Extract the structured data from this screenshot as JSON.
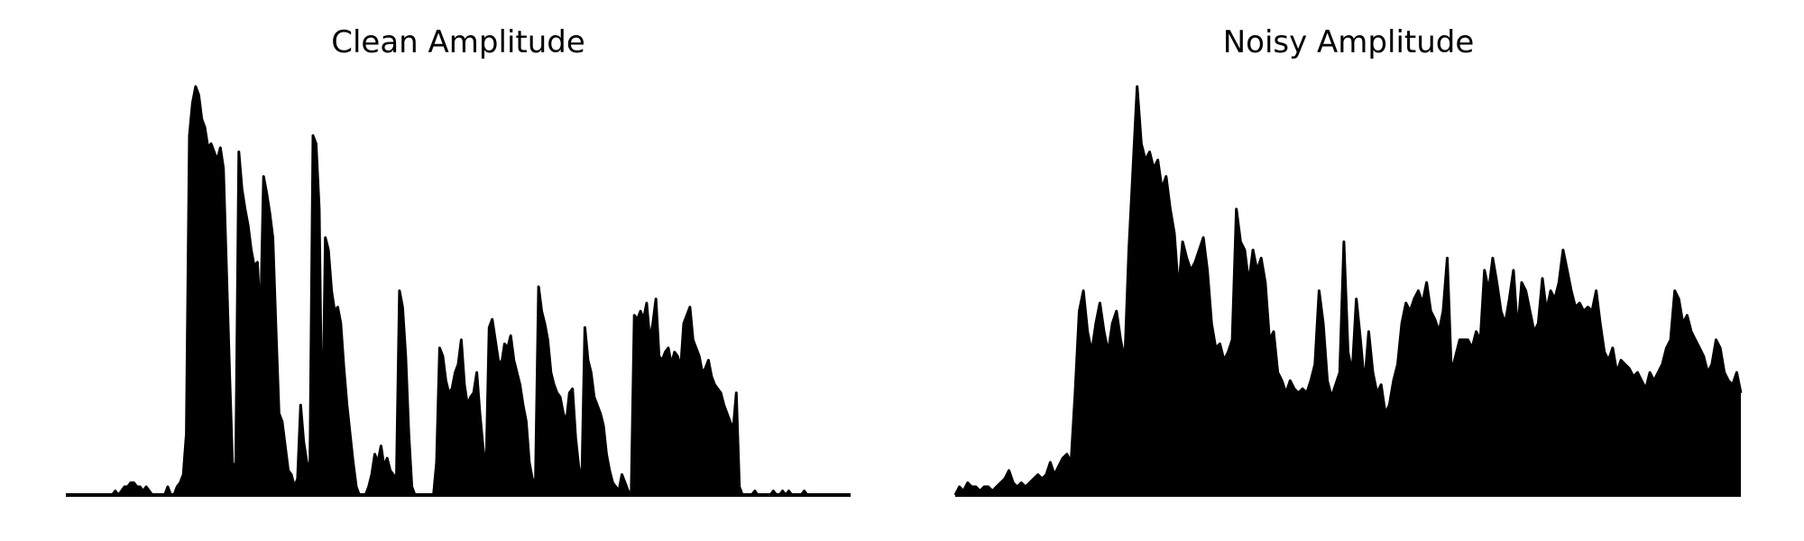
{
  "chart_data": [
    {
      "type": "area",
      "title": "Clean Amplitude",
      "xlabel": "",
      "ylabel": "",
      "grid": false,
      "axes_visible": false,
      "color": "#000000",
      "x_range": [
        0,
        1
      ],
      "ylim": [
        0,
        1
      ],
      "series": [
        {
          "values": [
            0.0,
            0.0,
            0.0,
            0.0,
            0.0,
            0.0,
            0.0,
            0.0,
            0.0,
            0.0,
            0.0,
            0.0,
            0.0,
            0.0,
            0.0,
            0.0,
            0.01,
            0.0,
            0.01,
            0.02,
            0.02,
            0.03,
            0.03,
            0.02,
            0.02,
            0.01,
            0.02,
            0.01,
            0.0,
            0.0,
            0.0,
            0.0,
            0.0,
            0.02,
            0.0,
            0.0,
            0.02,
            0.03,
            0.05,
            0.15,
            0.88,
            0.96,
            1.0,
            0.98,
            0.92,
            0.9,
            0.85,
            0.86,
            0.84,
            0.82,
            0.85,
            0.8,
            0.55,
            0.3,
            0.06,
            0.08,
            0.84,
            0.75,
            0.7,
            0.66,
            0.6,
            0.56,
            0.57,
            0.42,
            0.78,
            0.74,
            0.69,
            0.63,
            0.41,
            0.2,
            0.18,
            0.12,
            0.06,
            0.05,
            0.02,
            0.04,
            0.22,
            0.13,
            0.08,
            0.07,
            0.88,
            0.86,
            0.7,
            0.1,
            0.63,
            0.6,
            0.5,
            0.45,
            0.46,
            0.42,
            0.31,
            0.22,
            0.15,
            0.08,
            0.02,
            0.0,
            0.0,
            0.0,
            0.02,
            0.05,
            0.1,
            0.08,
            0.12,
            0.07,
            0.09,
            0.06,
            0.05,
            0.04,
            0.5,
            0.46,
            0.34,
            0.15,
            0.02,
            0.0,
            0.0,
            0.0,
            0.0,
            0.0,
            0.0,
            0.0,
            0.08,
            0.36,
            0.34,
            0.28,
            0.25,
            0.26,
            0.3,
            0.32,
            0.38,
            0.27,
            0.22,
            0.24,
            0.25,
            0.3,
            0.2,
            0.12,
            0.05,
            0.41,
            0.43,
            0.38,
            0.33,
            0.32,
            0.37,
            0.36,
            0.39,
            0.33,
            0.3,
            0.27,
            0.22,
            0.18,
            0.08,
            0.04,
            0.03,
            0.51,
            0.45,
            0.42,
            0.38,
            0.3,
            0.27,
            0.25,
            0.24,
            0.2,
            0.18,
            0.25,
            0.26,
            0.14,
            0.07,
            0.03,
            0.41,
            0.33,
            0.3,
            0.24,
            0.22,
            0.2,
            0.17,
            0.1,
            0.06,
            0.03,
            0.02,
            0.01,
            0.05,
            0.03,
            0.01,
            0.0,
            0.44,
            0.43,
            0.45,
            0.43,
            0.47,
            0.38,
            0.42,
            0.48,
            0.34,
            0.33,
            0.35,
            0.36,
            0.32,
            0.35,
            0.34,
            0.31,
            0.42,
            0.44,
            0.46,
            0.38,
            0.36,
            0.34,
            0.3,
            0.31,
            0.33,
            0.29,
            0.27,
            0.26,
            0.25,
            0.22,
            0.2,
            0.18,
            0.16,
            0.25,
            0.02,
            0.0,
            0.0,
            0.0,
            0.0,
            0.01,
            0.0,
            0.0,
            0.0,
            0.0,
            0.0,
            0.01,
            0.0,
            0.0,
            0.01,
            0.0,
            0.01,
            0.0,
            0.0,
            0.0,
            0.0,
            0.01,
            0.0,
            0.0,
            0.0,
            0.0,
            0.0,
            0.0,
            0.0,
            0.0,
            0.0,
            0.0,
            0.0,
            0.0,
            0.0,
            0.0,
            0.0
          ]
        }
      ]
    },
    {
      "type": "area",
      "title": "Noisy Amplitude",
      "xlabel": "",
      "ylabel": "",
      "grid": false,
      "axes_visible": false,
      "color": "#000000",
      "x_range": [
        0,
        1
      ],
      "ylim": [
        0,
        1
      ],
      "series": [
        {
          "values": [
            0.0,
            0.02,
            0.01,
            0.03,
            0.02,
            0.02,
            0.01,
            0.02,
            0.02,
            0.01,
            0.02,
            0.03,
            0.04,
            0.06,
            0.03,
            0.02,
            0.03,
            0.02,
            0.03,
            0.04,
            0.05,
            0.04,
            0.05,
            0.08,
            0.05,
            0.07,
            0.09,
            0.1,
            0.08,
            0.25,
            0.45,
            0.5,
            0.4,
            0.35,
            0.42,
            0.47,
            0.4,
            0.35,
            0.42,
            0.45,
            0.38,
            0.33,
            0.6,
            0.8,
            1.0,
            0.86,
            0.82,
            0.84,
            0.8,
            0.82,
            0.75,
            0.78,
            0.7,
            0.64,
            0.5,
            0.62,
            0.58,
            0.55,
            0.57,
            0.6,
            0.63,
            0.55,
            0.42,
            0.36,
            0.37,
            0.33,
            0.35,
            0.38,
            0.7,
            0.62,
            0.6,
            0.52,
            0.6,
            0.55,
            0.58,
            0.52,
            0.38,
            0.4,
            0.3,
            0.28,
            0.25,
            0.28,
            0.26,
            0.25,
            0.26,
            0.25,
            0.28,
            0.32,
            0.5,
            0.42,
            0.28,
            0.24,
            0.27,
            0.3,
            0.62,
            0.35,
            0.3,
            0.48,
            0.38,
            0.27,
            0.4,
            0.3,
            0.25,
            0.27,
            0.2,
            0.22,
            0.28,
            0.32,
            0.42,
            0.47,
            0.45,
            0.48,
            0.5,
            0.47,
            0.52,
            0.45,
            0.43,
            0.4,
            0.45,
            0.58,
            0.3,
            0.34,
            0.38,
            0.38,
            0.38,
            0.36,
            0.4,
            0.38,
            0.55,
            0.5,
            0.58,
            0.52,
            0.45,
            0.42,
            0.48,
            0.55,
            0.4,
            0.52,
            0.5,
            0.45,
            0.4,
            0.42,
            0.53,
            0.45,
            0.5,
            0.48,
            0.52,
            0.6,
            0.55,
            0.5,
            0.46,
            0.47,
            0.45,
            0.46,
            0.45,
            0.5,
            0.42,
            0.35,
            0.33,
            0.36,
            0.3,
            0.33,
            0.32,
            0.31,
            0.29,
            0.3,
            0.28,
            0.26,
            0.3,
            0.28,
            0.3,
            0.32,
            0.36,
            0.38,
            0.5,
            0.48,
            0.42,
            0.44,
            0.4,
            0.38,
            0.36,
            0.34,
            0.3,
            0.32,
            0.38,
            0.36,
            0.3,
            0.28,
            0.27,
            0.3,
            0.25
          ]
        }
      ]
    }
  ]
}
